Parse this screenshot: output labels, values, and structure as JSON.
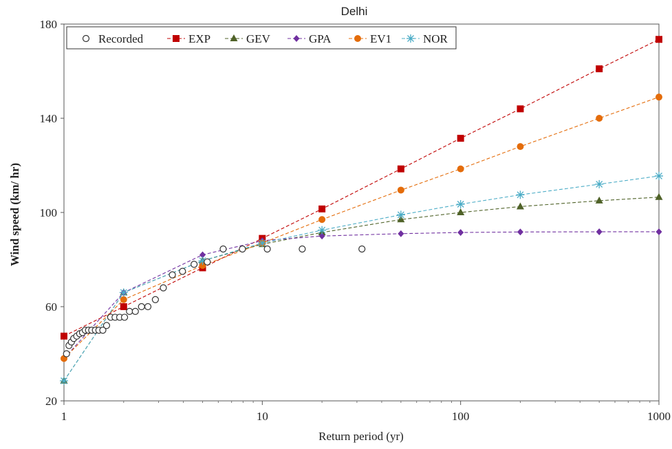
{
  "chart_data": {
    "type": "line",
    "title": "Delhi",
    "xlabel": "Return period (yr)",
    "ylabel": "Wind speed (km/ hr)",
    "x_scale": "log",
    "xlim": [
      1,
      1000
    ],
    "ylim": [
      20,
      180
    ],
    "x_ticks": [
      1,
      10,
      100,
      1000
    ],
    "x_tick_labels": [
      "1",
      "10",
      "100",
      "1000"
    ],
    "y_ticks": [
      20,
      60,
      100,
      140,
      180
    ],
    "y_tick_labels": [
      "20",
      "60",
      "100",
      "140",
      "180"
    ],
    "grid": false,
    "legend_position": "top-left",
    "recorded": {
      "name": "Recorded",
      "marker": "open-circle",
      "color": "#333333",
      "points": [
        [
          1.03,
          40
        ],
        [
          1.06,
          43.5
        ],
        [
          1.09,
          45
        ],
        [
          1.12,
          46.5
        ],
        [
          1.16,
          47.5
        ],
        [
          1.2,
          48.5
        ],
        [
          1.24,
          49
        ],
        [
          1.28,
          50
        ],
        [
          1.33,
          50
        ],
        [
          1.38,
          50
        ],
        [
          1.44,
          50
        ],
        [
          1.5,
          50
        ],
        [
          1.57,
          50
        ],
        [
          1.64,
          52
        ],
        [
          1.72,
          55.5
        ],
        [
          1.81,
          55.5
        ],
        [
          1.91,
          55.5
        ],
        [
          2.02,
          55.5
        ],
        [
          2.14,
          58
        ],
        [
          2.29,
          58
        ],
        [
          2.46,
          60
        ],
        [
          2.65,
          60
        ],
        [
          2.89,
          63
        ],
        [
          3.17,
          68
        ],
        [
          3.52,
          73.5
        ],
        [
          3.96,
          75
        ],
        [
          4.53,
          78
        ],
        [
          5.28,
          79
        ],
        [
          6.35,
          84.5
        ],
        [
          7.94,
          84.5
        ],
        [
          10.6,
          84.5
        ],
        [
          15.9,
          84.5
        ],
        [
          31.8,
          84.5
        ]
      ]
    },
    "x": [
      1,
      2,
      5,
      10,
      20,
      50,
      100,
      200,
      500,
      1000
    ],
    "series": [
      {
        "name": "EXP",
        "color": "#c00000",
        "marker": "square",
        "values": [
          47.5,
          60,
          76.5,
          89,
          101.5,
          118.5,
          131.5,
          144,
          161,
          173.5
        ]
      },
      {
        "name": "GEV",
        "color": "#4f6228",
        "marker": "triangle",
        "values": [
          28.5,
          66,
          79.5,
          86.5,
          91.5,
          97,
          100,
          102.5,
          105,
          106.5
        ]
      },
      {
        "name": "GPA",
        "color": "#7030a0",
        "marker": "diamond",
        "values": [
          38,
          66,
          82,
          88,
          90,
          91,
          91.5,
          91.7,
          91.8,
          91.8
        ]
      },
      {
        "name": "EV1",
        "color": "#e46c0a",
        "marker": "circle",
        "values": [
          38,
          63,
          77.5,
          87,
          97,
          109.5,
          118.5,
          128,
          140,
          149
        ]
      },
      {
        "name": "NOR",
        "color": "#4bacc6",
        "marker": "star",
        "values": [
          28.5,
          66,
          79.5,
          87,
          92.5,
          99,
          103.5,
          107.5,
          112,
          115.5
        ]
      }
    ]
  }
}
